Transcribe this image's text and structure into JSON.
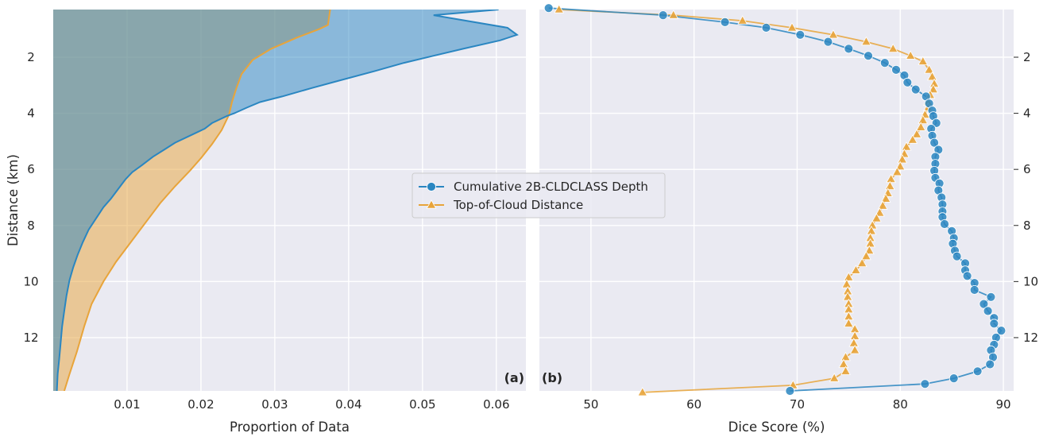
{
  "colors": {
    "background": "#eaeaf2",
    "grid": "#ffffff",
    "blue": "#2a86c1",
    "orange": "#e8a43a",
    "olive_overlap": "#aaa47c"
  },
  "panel_a_label": "(a)",
  "panel_b_label": "(b)",
  "legend": {
    "placement": "center (between panels)",
    "entries": [
      "Cumulative 2B-CLDCLASS Depth",
      "Top-of-Cloud Distance"
    ]
  },
  "chart_data": [
    {
      "type": "area",
      "panel": "a",
      "xlabel": "Proportion of Data",
      "ylabel": "Distance (km)",
      "xlim": [
        0,
        0.064
      ],
      "ylim": [
        13.9,
        0.3
      ],
      "y_inverted": true,
      "xticks": [
        "0.01",
        "0.02",
        "0.03",
        "0.04",
        "0.05",
        "0.06"
      ],
      "xtick_values": [
        0.01,
        0.02,
        0.03,
        0.04,
        0.05,
        0.06
      ],
      "yticks": [
        "2",
        "4",
        "6",
        "8",
        "10",
        "12"
      ],
      "ytick_values": [
        2,
        4,
        6,
        8,
        10,
        12
      ],
      "grid": true,
      "series": [
        {
          "name": "Cumulative 2B-CLDCLASS Depth",
          "color": "blue",
          "points": [
            [
              0.0603,
              0.3
            ],
            [
              0.0515,
              0.5
            ],
            [
              0.0615,
              0.95
            ],
            [
              0.0628,
              1.2
            ],
            [
              0.0605,
              1.4
            ],
            [
              0.0555,
              1.7
            ],
            [
              0.0515,
              1.95
            ],
            [
              0.0475,
              2.2
            ],
            [
              0.0435,
              2.5
            ],
            [
              0.0385,
              2.85
            ],
            [
              0.035,
              3.1
            ],
            [
              0.031,
              3.4
            ],
            [
              0.028,
              3.6
            ],
            [
              0.0262,
              3.8
            ],
            [
              0.0245,
              4.0
            ],
            [
              0.0235,
              4.1
            ],
            [
              0.0215,
              4.35
            ],
            [
              0.0205,
              4.55
            ],
            [
              0.0185,
              4.8
            ],
            [
              0.0165,
              5.05
            ],
            [
              0.015,
              5.3
            ],
            [
              0.0135,
              5.55
            ],
            [
              0.012,
              5.85
            ],
            [
              0.0107,
              6.1
            ],
            [
              0.0098,
              6.35
            ],
            [
              0.0088,
              6.7
            ],
            [
              0.0078,
              7.05
            ],
            [
              0.0068,
              7.35
            ],
            [
              0.0058,
              7.75
            ],
            [
              0.0048,
              8.15
            ],
            [
              0.004,
              8.6
            ],
            [
              0.0033,
              9.05
            ],
            [
              0.0027,
              9.5
            ],
            [
              0.0022,
              9.95
            ],
            [
              0.0018,
              10.5
            ],
            [
              0.0015,
              11.05
            ],
            [
              0.0012,
              11.6
            ],
            [
              0.001,
              12.2
            ],
            [
              0.0008,
              12.8
            ],
            [
              0.0006,
              13.3
            ],
            [
              0.0005,
              13.9
            ]
          ]
        },
        {
          "name": "Top-of-Cloud Distance",
          "color": "orange",
          "points": [
            [
              0.0375,
              0.3
            ],
            [
              0.0372,
              0.85
            ],
            [
              0.036,
              1.0
            ],
            [
              0.033,
              1.3
            ],
            [
              0.0295,
              1.7
            ],
            [
              0.027,
              2.1
            ],
            [
              0.0255,
              2.6
            ],
            [
              0.0248,
              3.1
            ],
            [
              0.0242,
              3.6
            ],
            [
              0.0238,
              4.05
            ],
            [
              0.0228,
              4.6
            ],
            [
              0.0215,
              5.1
            ],
            [
              0.02,
              5.6
            ],
            [
              0.0185,
              6.05
            ],
            [
              0.0165,
              6.6
            ],
            [
              0.0145,
              7.2
            ],
            [
              0.0125,
              7.9
            ],
            [
              0.0105,
              8.6
            ],
            [
              0.0085,
              9.3
            ],
            [
              0.0068,
              10.0
            ],
            [
              0.0052,
              10.8
            ],
            [
              0.0042,
              11.6
            ],
            [
              0.0032,
              12.5
            ],
            [
              0.0022,
              13.3
            ],
            [
              0.0015,
              13.9
            ]
          ]
        }
      ]
    },
    {
      "type": "line",
      "panel": "b",
      "xlabel": "Dice Score (%)",
      "ylabel": "",
      "xlim": [
        45,
        91
      ],
      "ylim": [
        13.9,
        0.3
      ],
      "y_inverted": true,
      "xticks": [
        "50",
        "60",
        "70",
        "80",
        "90"
      ],
      "xtick_values": [
        50,
        60,
        70,
        80,
        90
      ],
      "yticks": [
        "2",
        "4",
        "6",
        "8",
        "10",
        "12"
      ],
      "ytick_values": [
        2,
        4,
        6,
        8,
        10,
        12
      ],
      "grid": true,
      "series": [
        {
          "name": "Cumulative 2B-CLDCLASS Depth",
          "color": "blue",
          "marker": "circle",
          "points": [
            [
              45.9,
              0.25
            ],
            [
              57.0,
              0.5
            ],
            [
              63.0,
              0.75
            ],
            [
              67.0,
              0.95
            ],
            [
              70.3,
              1.2
            ],
            [
              73.0,
              1.45
            ],
            [
              75.0,
              1.7
            ],
            [
              76.9,
              1.95
            ],
            [
              78.5,
              2.2
            ],
            [
              79.6,
              2.45
            ],
            [
              80.4,
              2.65
            ],
            [
              80.7,
              2.9
            ],
            [
              81.5,
              3.15
            ],
            [
              82.5,
              3.4
            ],
            [
              82.8,
              3.65
            ],
            [
              83.1,
              3.9
            ],
            [
              83.2,
              4.1
            ],
            [
              83.5,
              4.35
            ],
            [
              83.0,
              4.55
            ],
            [
              83.1,
              4.8
            ],
            [
              83.3,
              5.05
            ],
            [
              83.7,
              5.3
            ],
            [
              83.4,
              5.55
            ],
            [
              83.4,
              5.8
            ],
            [
              83.3,
              6.05
            ],
            [
              83.4,
              6.3
            ],
            [
              83.8,
              6.5
            ],
            [
              83.7,
              6.75
            ],
            [
              84.0,
              7.0
            ],
            [
              84.1,
              7.25
            ],
            [
              84.1,
              7.5
            ],
            [
              84.1,
              7.7
            ],
            [
              84.3,
              7.95
            ],
            [
              85.0,
              8.2
            ],
            [
              85.2,
              8.45
            ],
            [
              85.1,
              8.65
            ],
            [
              85.3,
              8.9
            ],
            [
              85.5,
              9.1
            ],
            [
              86.3,
              9.35
            ],
            [
              86.3,
              9.6
            ],
            [
              86.5,
              9.8
            ],
            [
              87.2,
              10.05
            ],
            [
              87.2,
              10.3
            ],
            [
              88.8,
              10.55
            ],
            [
              88.1,
              10.8
            ],
            [
              88.5,
              11.05
            ],
            [
              89.1,
              11.3
            ],
            [
              89.1,
              11.5
            ],
            [
              89.8,
              11.75
            ],
            [
              89.3,
              12.0
            ],
            [
              89.1,
              12.25
            ],
            [
              88.8,
              12.45
            ],
            [
              89.0,
              12.7
            ],
            [
              88.7,
              12.95
            ],
            [
              87.5,
              13.2
            ],
            [
              85.2,
              13.45
            ],
            [
              82.4,
              13.65
            ],
            [
              69.3,
              13.9
            ]
          ]
        },
        {
          "name": "Top-of-Cloud Distance",
          "color": "orange",
          "marker": "triangle",
          "points": [
            [
              46.9,
              0.3
            ],
            [
              58.0,
              0.5
            ],
            [
              64.7,
              0.7
            ],
            [
              69.5,
              0.95
            ],
            [
              73.5,
              1.2
            ],
            [
              76.7,
              1.45
            ],
            [
              79.3,
              1.7
            ],
            [
              81.0,
              1.95
            ],
            [
              82.2,
              2.15
            ],
            [
              82.8,
              2.45
            ],
            [
              83.1,
              2.7
            ],
            [
              83.3,
              2.95
            ],
            [
              83.2,
              3.15
            ],
            [
              82.9,
              3.35
            ],
            [
              82.7,
              3.6
            ],
            [
              82.7,
              3.8
            ],
            [
              82.4,
              4.05
            ],
            [
              82.2,
              4.25
            ],
            [
              82.0,
              4.5
            ],
            [
              81.6,
              4.75
            ],
            [
              81.2,
              4.95
            ],
            [
              80.6,
              5.2
            ],
            [
              80.4,
              5.45
            ],
            [
              80.2,
              5.65
            ],
            [
              80.0,
              5.9
            ],
            [
              79.7,
              6.1
            ],
            [
              79.1,
              6.35
            ],
            [
              79.0,
              6.6
            ],
            [
              78.8,
              6.85
            ],
            [
              78.6,
              7.05
            ],
            [
              78.3,
              7.3
            ],
            [
              78.0,
              7.55
            ],
            [
              77.7,
              7.75
            ],
            [
              77.3,
              8.0
            ],
            [
              77.2,
              8.2
            ],
            [
              77.1,
              8.45
            ],
            [
              77.1,
              8.65
            ],
            [
              77.0,
              8.9
            ],
            [
              76.7,
              9.1
            ],
            [
              76.3,
              9.35
            ],
            [
              75.7,
              9.6
            ],
            [
              75.0,
              9.85
            ],
            [
              74.8,
              10.1
            ],
            [
              74.9,
              10.35
            ],
            [
              74.9,
              10.55
            ],
            [
              75.0,
              10.8
            ],
            [
              75.0,
              11.0
            ],
            [
              75.0,
              11.25
            ],
            [
              75.0,
              11.5
            ],
            [
              75.6,
              11.7
            ],
            [
              75.6,
              11.95
            ],
            [
              75.5,
              12.2
            ],
            [
              75.6,
              12.45
            ],
            [
              74.7,
              12.7
            ],
            [
              74.5,
              12.95
            ],
            [
              74.7,
              13.2
            ],
            [
              73.6,
              13.45
            ],
            [
              69.6,
              13.7
            ],
            [
              55.0,
              13.95
            ]
          ]
        }
      ]
    }
  ]
}
